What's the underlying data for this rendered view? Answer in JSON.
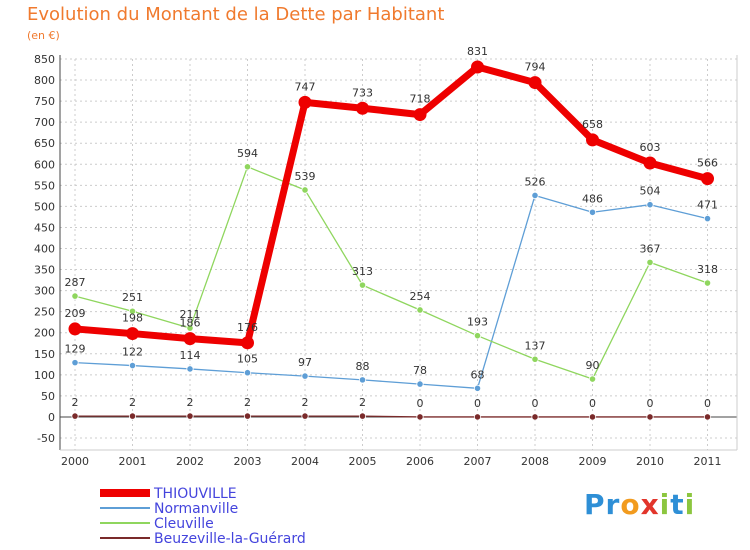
{
  "header": {
    "title": "Evolution du Montant de la Dette par Habitant",
    "subtitle": "(en €)"
  },
  "logo": {
    "text": "Proxiti",
    "letters": [
      {
        "ch": "P",
        "color": "#2e8fd6"
      },
      {
        "ch": "r",
        "color": "#2e8fd6"
      },
      {
        "ch": "o",
        "color": "#f29b1e"
      },
      {
        "ch": "x",
        "color": "#e2352b"
      },
      {
        "ch": "i",
        "color": "#8cc63f"
      },
      {
        "ch": "t",
        "color": "#2e8fd6"
      },
      {
        "ch": "i",
        "color": "#8cc63f"
      }
    ]
  },
  "colors": {
    "title": "#f07a2e",
    "grid": "#cccccc",
    "axis": "#444444",
    "legend_text": "#4444dd"
  },
  "chart_data": {
    "type": "line",
    "title": "Evolution du Montant de la Dette par Habitant",
    "subtitle": "(en €)",
    "x": [
      "2000",
      "2001",
      "2002",
      "2003",
      "2004",
      "2005",
      "2006",
      "2007",
      "2008",
      "2009",
      "2010",
      "2011"
    ],
    "y_ticks": [
      -50,
      0,
      50,
      100,
      150,
      200,
      250,
      300,
      350,
      400,
      450,
      500,
      550,
      600,
      650,
      700,
      750,
      800,
      850
    ],
    "ylim": [
      -50,
      850
    ],
    "grid": true,
    "legend_position": "bottom-left",
    "series": [
      {
        "name": "THIOUVILLE",
        "color": "#ee0000",
        "values": [
          209,
          198,
          186,
          176,
          747,
          733,
          718,
          831,
          794,
          658,
          603,
          566
        ],
        "labels": [
          "209",
          "198",
          "186",
          "176",
          "747",
          "733",
          "718",
          "831",
          "794",
          "658",
          "603",
          "566"
        ]
      },
      {
        "name": "Normanville",
        "color": "#5e9ed6",
        "values": [
          129,
          122,
          114,
          105,
          97,
          88,
          78,
          68,
          526,
          486,
          504,
          471
        ],
        "labels": [
          "129",
          "122",
          "114",
          "105",
          "97",
          "88",
          "78",
          "68",
          "526",
          "486",
          "504",
          "471"
        ]
      },
      {
        "name": "Cleuville",
        "color": "#8fd65e",
        "values": [
          287,
          251,
          211,
          594,
          539,
          313,
          254,
          193,
          137,
          90,
          367,
          318
        ],
        "labels": [
          "287",
          "251",
          "211",
          "594",
          "539",
          "313",
          "254",
          "193",
          "137",
          "90",
          "367",
          "318"
        ]
      },
      {
        "name": "Beuzeville-la-Guérard",
        "color": "#7a2a2a",
        "values": [
          2,
          2,
          2,
          2,
          2,
          2,
          0,
          0,
          0,
          0,
          0,
          0
        ],
        "labels": [
          "2",
          "2",
          "2",
          "2",
          "2",
          "2",
          "0",
          "0",
          "0",
          "0",
          "0",
          "0"
        ]
      }
    ]
  }
}
